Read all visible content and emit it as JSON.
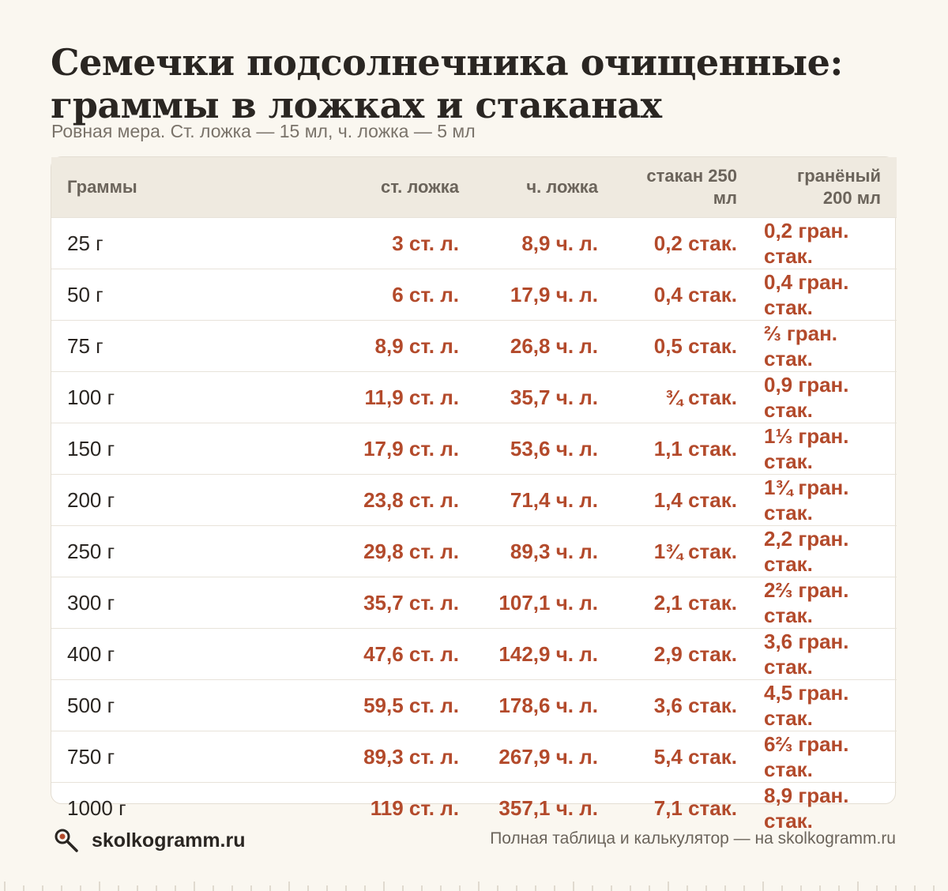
{
  "header": {
    "title": "Семечки подсолнечника очищенные: граммы в ложках и стаканах",
    "subtitle": "Ровная мера. Ст. ложка — 15 мл, ч. ложка — 5 мл"
  },
  "table": {
    "columns": [
      "Граммы",
      "ст. ложка",
      "ч. ложка",
      "стакан 250 мл",
      "гранёный 200 мл"
    ],
    "rows": [
      [
        "25 г",
        "3 ст. л.",
        "8,9 ч. л.",
        "0,2 стак.",
        "0,2 гран. стак."
      ],
      [
        "50 г",
        "6 ст. л.",
        "17,9 ч. л.",
        "0,4 стак.",
        "0,4 гран. стак."
      ],
      [
        "75 г",
        "8,9 ст. л.",
        "26,8 ч. л.",
        "0,5 стак.",
        "⅔ гран. стак."
      ],
      [
        "100 г",
        "11,9 ст. л.",
        "35,7 ч. л.",
        "¾ стак.",
        "0,9 гран. стак."
      ],
      [
        "150 г",
        "17,9 ст. л.",
        "53,6 ч. л.",
        "1,1 стак.",
        "1⅓ гран. стак."
      ],
      [
        "200 г",
        "23,8 ст. л.",
        "71,4 ч. л.",
        "1,4 стак.",
        "1¾ гран. стак."
      ],
      [
        "250 г",
        "29,8 ст. л.",
        "89,3 ч. л.",
        "1¾ стак.",
        "2,2 гран. стак."
      ],
      [
        "300 г",
        "35,7 ст. л.",
        "107,1 ч. л.",
        "2,1 стак.",
        "2⅔ гран. стак."
      ],
      [
        "400 г",
        "47,6 ст. л.",
        "142,9 ч. л.",
        "2,9 стак.",
        "3,6 гран. стак."
      ],
      [
        "500 г",
        "59,5 ст. л.",
        "178,6 ч. л.",
        "3,6 стак.",
        "4,5 гран. стак."
      ],
      [
        "750 г",
        "89,3 ст. л.",
        "267,9 ч. л.",
        "5,4 стак.",
        "6⅔ гран. стак."
      ],
      [
        "1000 г",
        "119 ст. л.",
        "357,1 ч. л.",
        "7,1 стак.",
        "8,9 гран. стак."
      ]
    ]
  },
  "footer": {
    "brand": "skolkogramm.ru",
    "brand_icon": "magnifier-icon",
    "note": "Полная таблица и калькулятор — на skolkogramm.ru"
  },
  "colors": {
    "background": "#faf7f0",
    "accent": "#b34a2b",
    "header_row": "#efeae0",
    "text": "#2a2622",
    "muted": "#7a736a"
  }
}
